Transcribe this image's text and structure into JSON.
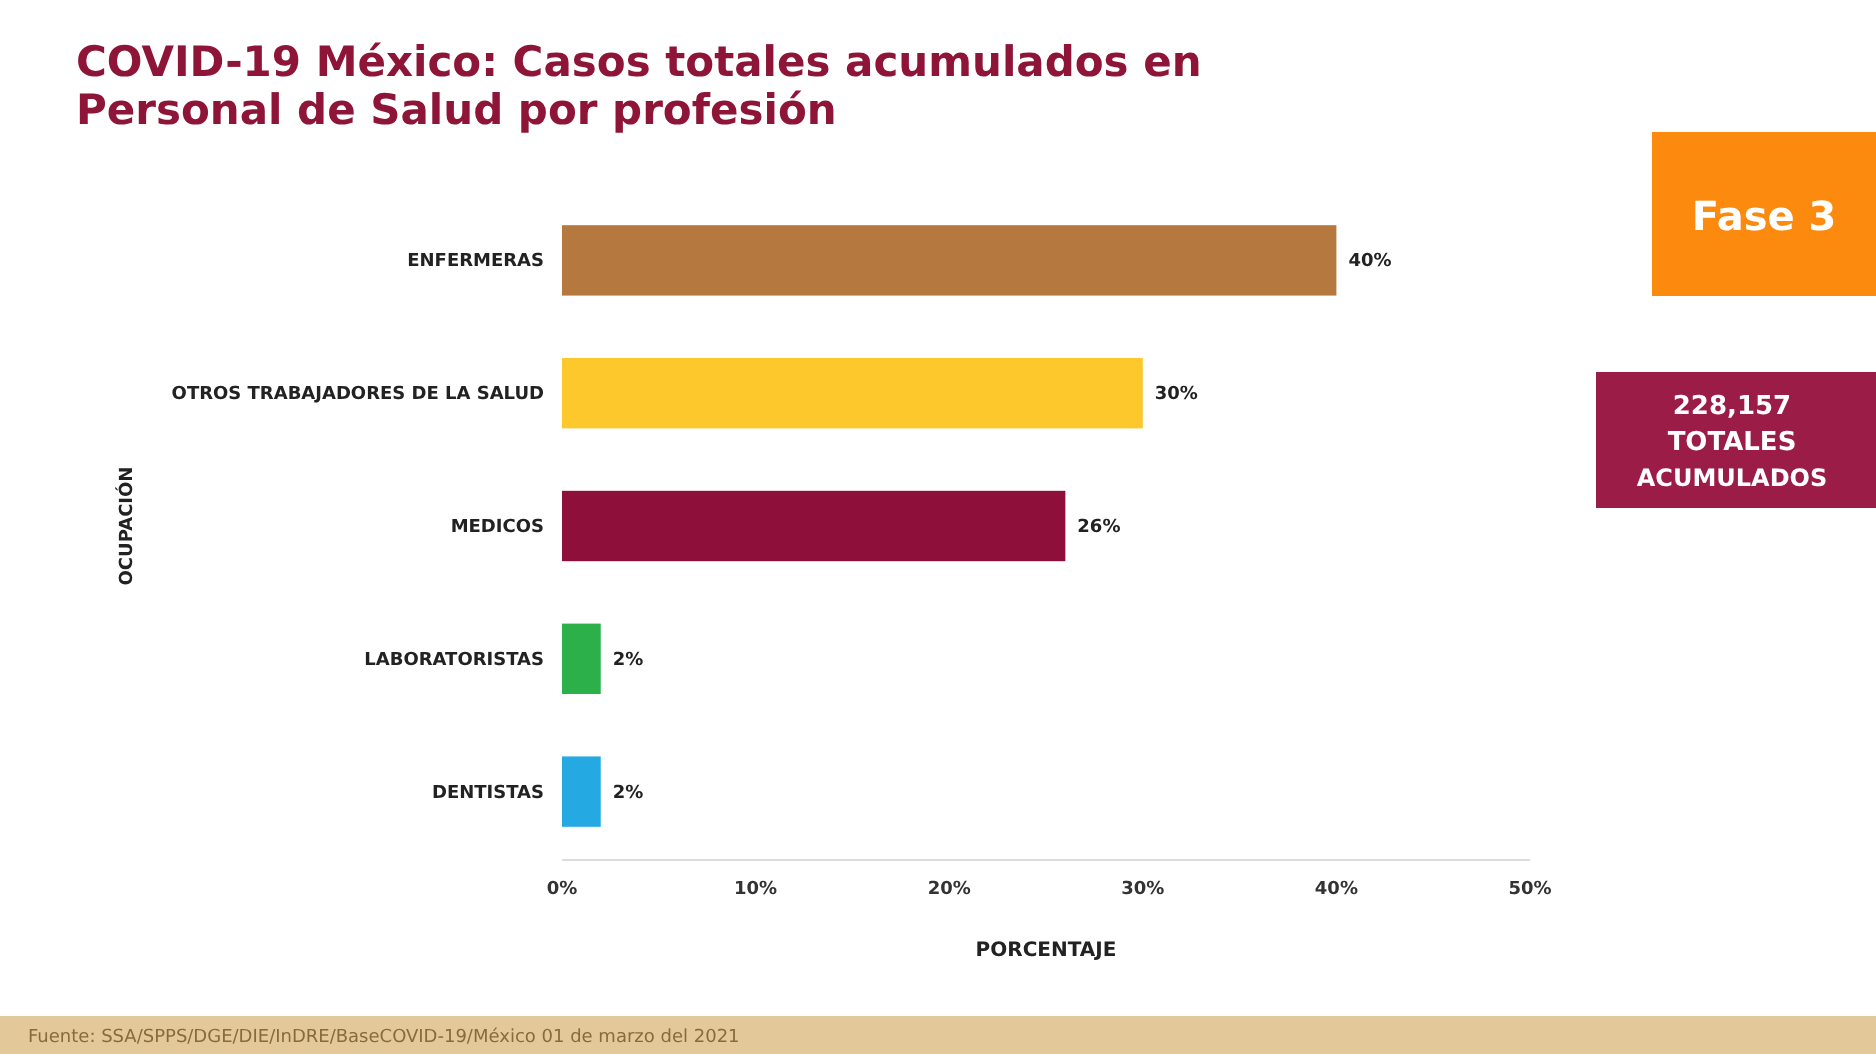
{
  "chart_data": {
    "type": "bar",
    "orientation": "horizontal",
    "title": "COVID-19 México: Casos totales acumulados en Personal de Salud por profesión",
    "xlabel": "PORCENTAJE",
    "ylabel": "OCUPACIÓN",
    "categories": [
      "ENFERMERAS",
      "OTROS TRABAJADORES DE LA SALUD",
      "MEDICOS",
      "LABORATORISTAS",
      "DENTISTAS"
    ],
    "values": [
      40,
      30,
      26,
      2,
      2
    ],
    "colors": [
      "#b5793f",
      "#fcc82c",
      "#8e0f3a",
      "#2bb04a",
      "#25a9e3"
    ],
    "value_labels": [
      "40%",
      "30%",
      "26%",
      "2%",
      "2%"
    ],
    "xlim": [
      0,
      50
    ],
    "xticks": [
      {
        "value": 0,
        "label": "0%"
      },
      {
        "value": 10,
        "label": "10%"
      },
      {
        "value": 20,
        "label": "20%"
      },
      {
        "value": 30,
        "label": "30%"
      },
      {
        "value": 40,
        "label": "40%"
      },
      {
        "value": 50,
        "label": "50%"
      }
    ],
    "grid": false,
    "annotations": [
      "Fase 3",
      "228,157 TOTALES ACUMULADOS",
      "Fuente: SSA/SPPS/DGE/DIE/InDRE/BaseCOVID-19/México 01 de marzo  del 2021"
    ]
  }
}
